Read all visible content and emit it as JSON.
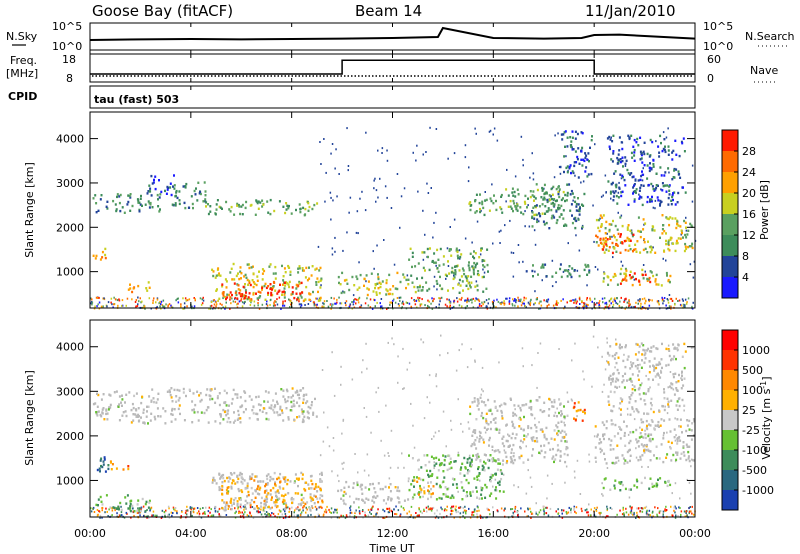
{
  "header": {
    "station": "Goose Bay (fitACF)",
    "beam": "Beam 14",
    "date": "11/Jan/2010"
  },
  "top_panels": {
    "nsky_label": "N.Sky",
    "nsky_ticks": [
      "10^5",
      "10^0"
    ],
    "nsearch_label": "N.Search",
    "nsearch_ticks": [
      "10^5",
      "10^0"
    ],
    "freq_label_line1": "Freq.",
    "freq_label_line2": "[MHz]",
    "freq_ticks": [
      "18",
      "8"
    ],
    "nave_label": "Nave",
    "nave_ticks": [
      "60",
      "0"
    ],
    "cpid_label": "CPID",
    "cpid_value": "tau (fast) 503"
  },
  "colors": {
    "power_scale": [
      "#1a1aff",
      "#224499",
      "#3d8c5a",
      "#5aa060",
      "#c8d020",
      "#ffa000",
      "#ff6a00",
      "#ff1a00"
    ],
    "velocity_scale": [
      "#1a40b0",
      "#2a6880",
      "#3d8c5a",
      "#66c033",
      "#c8c8c8",
      "#ffb000",
      "#ff8800",
      "#ff3300",
      "#ff0000"
    ],
    "ground_scatter": "#b9b9b9"
  },
  "chart_data": [
    {
      "type": "heatmap",
      "name": "power",
      "xlabel": "",
      "ylabel": "Slant Range [km]",
      "xlim": [
        "00:00",
        "24:00"
      ],
      "ylim": [
        180,
        4600
      ],
      "yticks": [
        "1000",
        "2000",
        "3000",
        "4000"
      ],
      "colorbar_label": "Power [dB]",
      "colorbar_ticks": [
        "28",
        "24",
        "20",
        "16",
        "12",
        "8",
        "4"
      ],
      "patches": [
        {
          "t0": 0.1,
          "t1": 2.8,
          "r0": 2350,
          "r1": 2800,
          "level": 2
        },
        {
          "t0": 2.2,
          "t1": 3.4,
          "r0": 2700,
          "r1": 3200,
          "level": 1
        },
        {
          "t0": 3.2,
          "t1": 4.6,
          "r0": 2450,
          "r1": 3050,
          "level": 2
        },
        {
          "t0": 4.5,
          "t1": 9.0,
          "r0": 2300,
          "r1": 2650,
          "level": 3
        },
        {
          "t0": 0.1,
          "t1": 0.6,
          "r0": 1250,
          "r1": 1650,
          "level": 5
        },
        {
          "t0": 1.5,
          "t1": 2.5,
          "r0": 550,
          "r1": 800,
          "level": 5
        },
        {
          "t0": 4.8,
          "t1": 9.2,
          "r0": 350,
          "r1": 1200,
          "level": 4
        },
        {
          "t0": 5.2,
          "t1": 8.4,
          "r0": 400,
          "r1": 800,
          "level": 7
        },
        {
          "t0": 9.8,
          "t1": 12.6,
          "r0": 500,
          "r1": 1000,
          "level": 4
        },
        {
          "t0": 12.6,
          "t1": 15.8,
          "r0": 550,
          "r1": 1550,
          "level": 3
        },
        {
          "t0": 15.0,
          "t1": 18.8,
          "r0": 2300,
          "r1": 2900,
          "level": 3
        },
        {
          "t0": 17.4,
          "t1": 19.6,
          "r0": 2000,
          "r1": 3000,
          "level": 2
        },
        {
          "t0": 17.2,
          "t1": 19.9,
          "r0": 900,
          "r1": 1200,
          "level": 2
        },
        {
          "t0": 18.6,
          "t1": 19.9,
          "r0": 3100,
          "r1": 4200,
          "level": 1
        },
        {
          "t0": 20.0,
          "t1": 24.0,
          "r0": 1450,
          "r1": 2300,
          "level": 4
        },
        {
          "t0": 20.0,
          "t1": 21.6,
          "r0": 1450,
          "r1": 1900,
          "level": 6
        },
        {
          "t0": 20.3,
          "t1": 23.0,
          "r0": 700,
          "r1": 1100,
          "level": 4
        },
        {
          "t0": 21.0,
          "t1": 22.2,
          "r0": 750,
          "r1": 1000,
          "level": 7
        },
        {
          "t0": 20.5,
          "t1": 23.6,
          "r0": 2500,
          "r1": 4100,
          "level": 1
        }
      ]
    },
    {
      "type": "heatmap",
      "name": "velocity",
      "xlabel": "Time UT",
      "ylabel": "Slant Range [km]",
      "xlim": [
        "00:00",
        "24:00"
      ],
      "ylim": [
        180,
        4600
      ],
      "xticks": [
        "00:00",
        "04:00",
        "08:00",
        "12:00",
        "16:00",
        "20:00",
        "00:00"
      ],
      "yticks": [
        "1000",
        "2000",
        "3000",
        "4000"
      ],
      "colorbar_label": "Velocity [m s^-1]",
      "colorbar_ticks": [
        "1000",
        "500",
        "100",
        "25",
        "-25",
        "-100",
        "-500",
        "-1000"
      ],
      "patches": [
        {
          "t0": 0.1,
          "t1": 9.0,
          "r0": 2300,
          "r1": 3100,
          "level": 4
        },
        {
          "t0": 0.1,
          "t1": 0.7,
          "r0": 1200,
          "r1": 1700,
          "level": 1
        },
        {
          "t0": 0.6,
          "t1": 1.5,
          "r0": 1250,
          "r1": 1450,
          "level": 6
        },
        {
          "t0": 0.2,
          "t1": 2.5,
          "r0": 300,
          "r1": 700,
          "level": 3
        },
        {
          "t0": 4.8,
          "t1": 9.2,
          "r0": 350,
          "r1": 1200,
          "level": 4
        },
        {
          "t0": 5.2,
          "t1": 9.2,
          "r0": 400,
          "r1": 1100,
          "level": 5
        },
        {
          "t0": 9.8,
          "t1": 12.6,
          "r0": 500,
          "r1": 1000,
          "level": 4
        },
        {
          "t0": 12.6,
          "t1": 16.4,
          "r0": 600,
          "r1": 1600,
          "level": 3
        },
        {
          "t0": 12.8,
          "t1": 13.6,
          "r0": 700,
          "r1": 1100,
          "level": 5
        },
        {
          "t0": 14.6,
          "t1": 15.8,
          "r0": 1200,
          "r1": 1500,
          "level": 3
        },
        {
          "t0": 15.0,
          "t1": 19.0,
          "r0": 1400,
          "r1": 2900,
          "level": 4
        },
        {
          "t0": 19.0,
          "t1": 19.6,
          "r0": 2300,
          "r1": 2800,
          "level": 6
        },
        {
          "t0": 20.0,
          "t1": 24.0,
          "r0": 1400,
          "r1": 2400,
          "level": 4
        },
        {
          "t0": 20.3,
          "t1": 23.0,
          "r0": 800,
          "r1": 1100,
          "level": 3
        },
        {
          "t0": 20.5,
          "t1": 23.6,
          "r0": 2500,
          "r1": 4100,
          "level": 4
        }
      ]
    },
    {
      "type": "line",
      "name": "nsky",
      "x_hours": [
        0,
        2,
        4,
        6,
        8,
        10,
        12,
        13.8,
        14,
        16,
        18,
        19.5,
        20,
        21,
        22,
        24
      ],
      "values": [
        0.35,
        0.38,
        0.4,
        0.38,
        0.4,
        0.42,
        0.45,
        0.5,
        0.95,
        0.45,
        0.42,
        0.45,
        0.6,
        0.62,
        0.55,
        0.42
      ]
    },
    {
      "type": "line",
      "name": "frequency",
      "x_hours": [
        0,
        10,
        10,
        20,
        20,
        24
      ],
      "values": [
        10.5,
        10.5,
        16.2,
        16.2,
        10.5,
        10.5
      ],
      "ylim": [
        8,
        18
      ]
    }
  ]
}
